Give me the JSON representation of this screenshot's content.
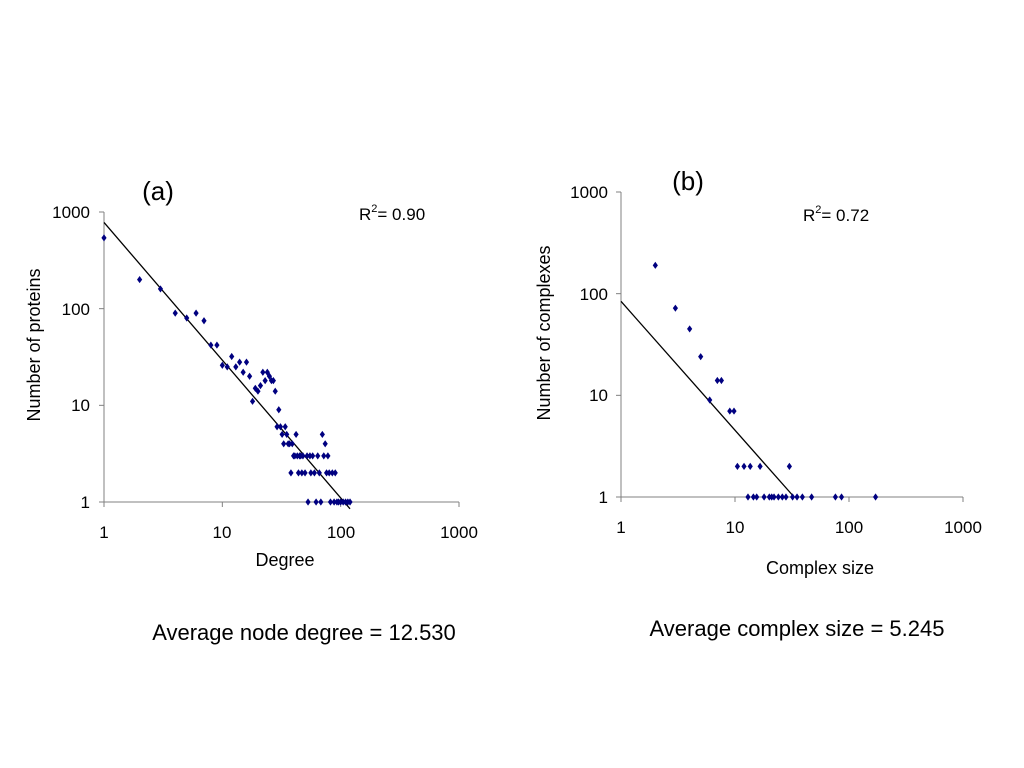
{
  "chart_data": [
    {
      "type": "scatter",
      "panel_label": "(a)",
      "xlabel": "Degree",
      "ylabel": "Number of proteins",
      "xscale": "log",
      "yscale": "log",
      "xlim": [
        1,
        1000
      ],
      "ylim": [
        1,
        1000
      ],
      "xticks": [
        "1",
        "10",
        "100",
        "1000"
      ],
      "yticks": [
        "1",
        "10",
        "100",
        "1000"
      ],
      "grid": false,
      "legend": "none",
      "r2_label": "R",
      "r2_sup": "2",
      "r2_value": "= 0.90",
      "marker_color": "#000080",
      "series": [
        {
          "points": [
            [
              1,
              540
            ],
            [
              2,
              200
            ],
            [
              3,
              160
            ],
            [
              4,
              90
            ],
            [
              5,
              80
            ],
            [
              6,
              90
            ],
            [
              7,
              75
            ],
            [
              8,
              42
            ],
            [
              9,
              42
            ],
            [
              10,
              26
            ],
            [
              11,
              25
            ],
            [
              12,
              32
            ],
            [
              13,
              25
            ],
            [
              14,
              28
            ],
            [
              15,
              22
            ],
            [
              16,
              28
            ],
            [
              17,
              20
            ],
            [
              18,
              11
            ],
            [
              19,
              15
            ],
            [
              20,
              14
            ],
            [
              21,
              16
            ],
            [
              22,
              22
            ],
            [
              23,
              18
            ],
            [
              24,
              22
            ],
            [
              25,
              20
            ],
            [
              26,
              18
            ],
            [
              27,
              18
            ],
            [
              28,
              14
            ],
            [
              29,
              6
            ],
            [
              30,
              9
            ],
            [
              31,
              6
            ],
            [
              32,
              5
            ],
            [
              33,
              4
            ],
            [
              34,
              6
            ],
            [
              35,
              5
            ],
            [
              36,
              4
            ],
            [
              37,
              4
            ],
            [
              38,
              2
            ],
            [
              39,
              4
            ],
            [
              40,
              3
            ],
            [
              41,
              3
            ],
            [
              42,
              5
            ],
            [
              43,
              3
            ],
            [
              44,
              2
            ],
            [
              45,
              3
            ],
            [
              46,
              3
            ],
            [
              47,
              2
            ],
            [
              48,
              3
            ],
            [
              50,
              2
            ],
            [
              52,
              3
            ],
            [
              53,
              1
            ],
            [
              55,
              3
            ],
            [
              56,
              2
            ],
            [
              58,
              3
            ],
            [
              60,
              2
            ],
            [
              62,
              1
            ],
            [
              64,
              3
            ],
            [
              66,
              2
            ],
            [
              68,
              1
            ],
            [
              70,
              5
            ],
            [
              72,
              3
            ],
            [
              74,
              4
            ],
            [
              76,
              2
            ],
            [
              78,
              3
            ],
            [
              80,
              2
            ],
            [
              82,
              1
            ],
            [
              85,
              2
            ],
            [
              88,
              1
            ],
            [
              90,
              2
            ],
            [
              93,
              1
            ],
            [
              96,
              1
            ],
            [
              100,
              1
            ],
            [
              105,
              1
            ],
            [
              110,
              1
            ],
            [
              115,
              1
            ],
            [
              120,
              1
            ]
          ]
        }
      ],
      "fit": {
        "x": [
          1,
          120
        ],
        "y": [
          780,
          0.85
        ]
      }
    },
    {
      "type": "scatter",
      "panel_label": "(b)",
      "xlabel": "Complex size",
      "ylabel": "Number of complexes",
      "xscale": "log",
      "yscale": "log",
      "xlim": [
        1,
        1000
      ],
      "ylim": [
        1,
        1000
      ],
      "xticks": [
        "1",
        "10",
        "100",
        "1000"
      ],
      "yticks": [
        "1",
        "10",
        "100",
        "1000"
      ],
      "grid": false,
      "legend": "none",
      "r2_label": "R",
      "r2_sup": "2",
      "r2_value": "= 0.72",
      "marker_color": "#000080",
      "series": [
        {
          "points": [
            [
              2,
              190
            ],
            [
              3,
              72
            ],
            [
              4,
              45
            ],
            [
              5,
              24
            ],
            [
              6,
              9
            ],
            [
              7,
              14
            ],
            [
              7.6,
              14
            ],
            [
              9,
              7
            ],
            [
              9.8,
              7
            ],
            [
              10.5,
              2
            ],
            [
              12,
              2
            ],
            [
              13,
              1
            ],
            [
              13.6,
              2
            ],
            [
              14.5,
              1
            ],
            [
              15.5,
              1
            ],
            [
              16.6,
              2
            ],
            [
              18,
              1
            ],
            [
              20,
              1
            ],
            [
              21,
              1
            ],
            [
              22,
              1
            ],
            [
              24,
              1
            ],
            [
              26,
              1
            ],
            [
              28,
              1
            ],
            [
              30,
              2
            ],
            [
              32,
              1
            ],
            [
              35,
              1
            ],
            [
              39,
              1
            ],
            [
              47,
              1
            ],
            [
              76,
              1
            ],
            [
              86,
              1
            ],
            [
              171,
              1
            ]
          ]
        }
      ],
      "fit": {
        "x": [
          1,
          33
        ],
        "y": [
          84,
          1
        ]
      }
    }
  ],
  "captions": {
    "left": "Average node degree = 12.530",
    "right": "Average complex size = 5.245"
  }
}
